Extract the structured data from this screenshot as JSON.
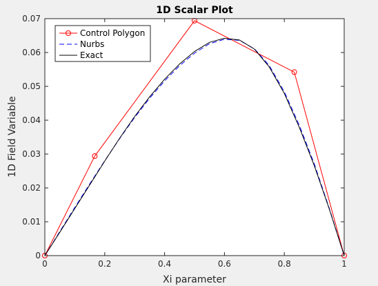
{
  "chart_data": {
    "type": "line",
    "title": "1D Scalar Plot",
    "xlabel": "Xi parameter",
    "ylabel": "1D Field Variable",
    "xlim": [
      0,
      1
    ],
    "ylim": [
      0,
      0.07
    ],
    "xticks": [
      0,
      0.2,
      0.4,
      0.6,
      0.8,
      1
    ],
    "xtick_labels": [
      "0",
      "0.2",
      "0.4",
      "0.6",
      "0.8",
      "1"
    ],
    "yticks": [
      0,
      0.01,
      0.02,
      0.03,
      0.04,
      0.05,
      0.06,
      0.07
    ],
    "ytick_labels": [
      "0",
      "0.01",
      "0.02",
      "0.03",
      "0.04",
      "0.05",
      "0.06",
      "0.07"
    ],
    "grid": false,
    "legend_position": "top-left",
    "series": [
      {
        "name": "Control Polygon",
        "color": "#ff0000",
        "style": "solid",
        "marker": "circle",
        "x": [
          0,
          0.1667,
          0.5,
          0.8333,
          1
        ],
        "y": [
          0,
          0.0294,
          0.0694,
          0.0542,
          0
        ]
      },
      {
        "name": "Nurbs",
        "color": "#0000ff",
        "style": "dashed",
        "marker": "none",
        "x": [
          0,
          0.05,
          0.1,
          0.15,
          0.2,
          0.25,
          0.3,
          0.35,
          0.4,
          0.45,
          0.5,
          0.55,
          0.6,
          0.65,
          0.7,
          0.75,
          0.8,
          0.85,
          0.9,
          0.95,
          1
        ],
        "y": [
          0,
          0.0071,
          0.0142,
          0.0212,
          0.028,
          0.0346,
          0.0408,
          0.0465,
          0.0516,
          0.0561,
          0.0598,
          0.0626,
          0.0639,
          0.0636,
          0.0611,
          0.0561,
          0.0484,
          0.0385,
          0.0271,
          0.014,
          0
        ]
      },
      {
        "name": "Exact",
        "color": "#000000",
        "style": "solid",
        "marker": "none",
        "x": [
          0,
          0.05,
          0.1,
          0.15,
          0.2,
          0.25,
          0.3,
          0.35,
          0.4,
          0.45,
          0.5,
          0.55,
          0.6,
          0.65,
          0.7,
          0.75,
          0.8,
          0.85,
          0.9,
          0.95,
          1
        ],
        "y": [
          0,
          0.0069,
          0.0139,
          0.0209,
          0.0279,
          0.0347,
          0.0411,
          0.0469,
          0.0521,
          0.0566,
          0.0603,
          0.063,
          0.0642,
          0.0637,
          0.061,
          0.0557,
          0.0479,
          0.0379,
          0.0266,
          0.0138,
          0
        ]
      }
    ]
  }
}
